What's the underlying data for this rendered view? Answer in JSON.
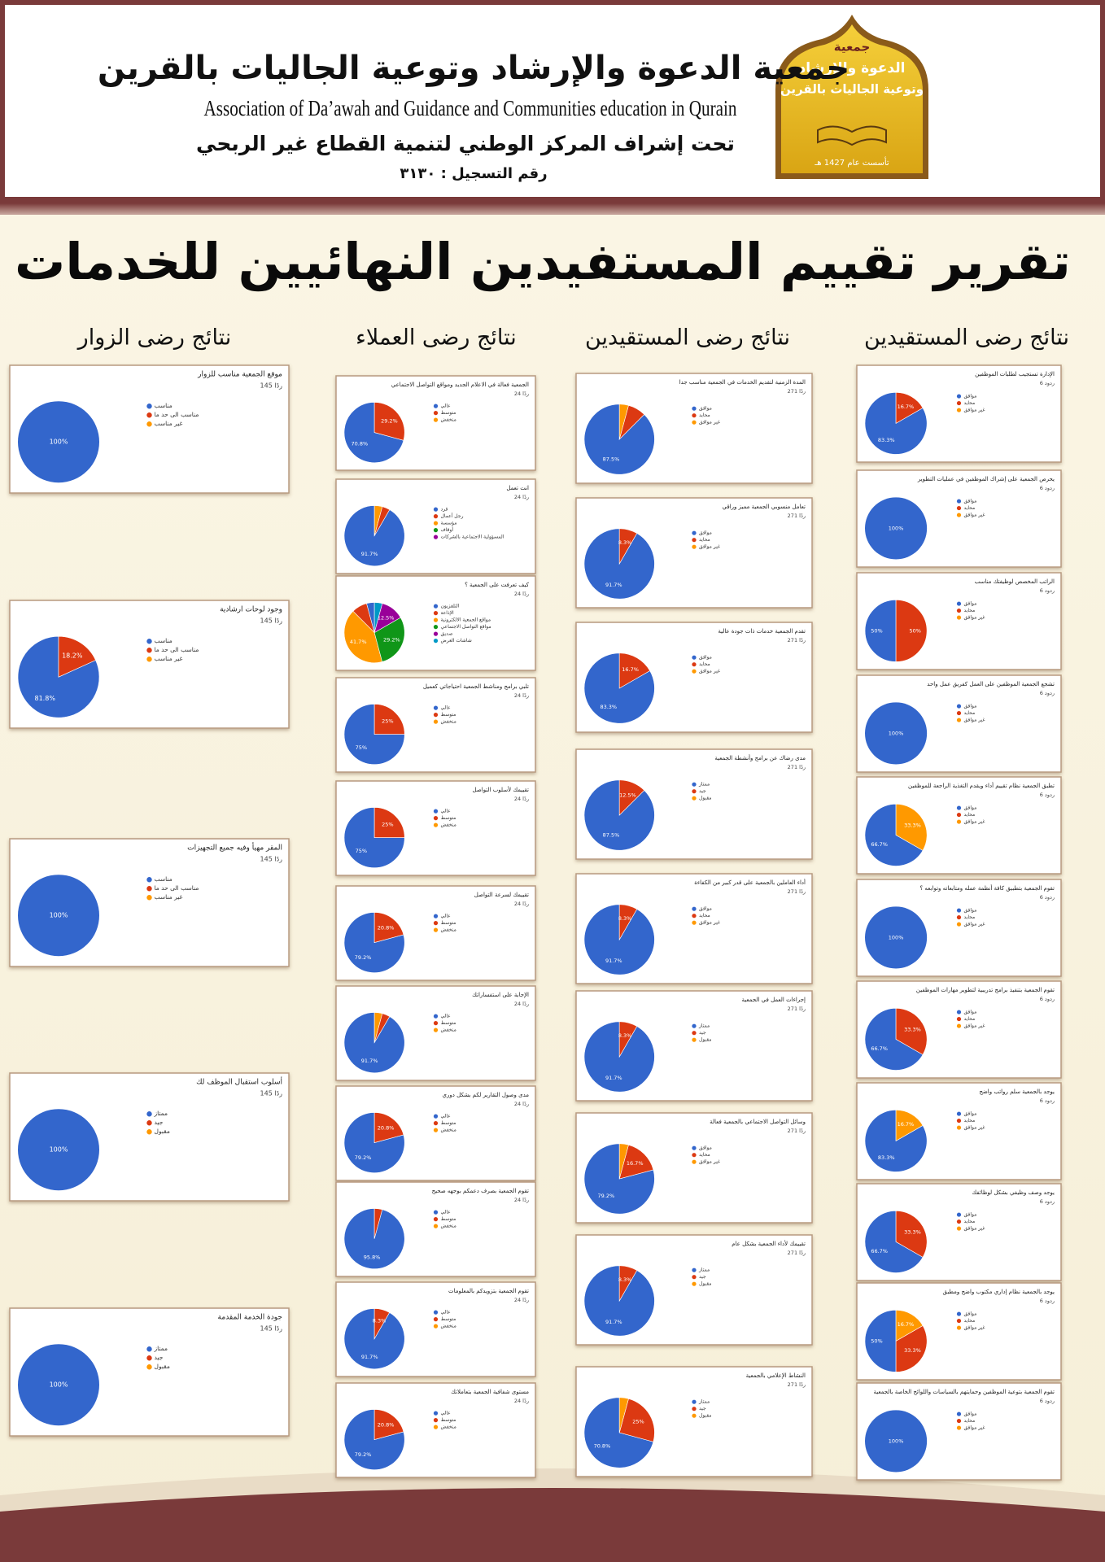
{
  "header": {
    "org_ar": "جمعية الدعوة والإرشاد وتوعية الجاليات بالقرين",
    "org_en": "Association of  Da’awah and Guidance and Communities education in Qurain",
    "supervision": "تحت إشراف المركز الوطني لتنمية القطاع غير الربحي",
    "registration": "رقم التسجيل : ٣١٣٠",
    "logo_lines": [
      "جمعية",
      "الدعوة والإرشاد",
      "وتوعية الجاليات بالقرين"
    ],
    "logo_date": "تأسست عام 1427 هـ"
  },
  "title": "تقرير تقييم المستفيدين النهائيين للخدمات",
  "slice_colors": [
    "#3366cc",
    "#dc3912",
    "#ff9900",
    "#109618",
    "#990099",
    "#0099c6"
  ],
  "sections": [
    {
      "heading": "نتائج رضى المستقيدين",
      "charts": [
        {
          "type": "pie",
          "title": "الإدارة تستجيب لطلبات الموظفين",
          "responses": "6 ردود",
          "categories": [
            "موافق",
            "محايد",
            "غير موافق"
          ],
          "values": [
            83.3,
            16.7,
            0
          ],
          "value_labels": [
            "83.3%",
            "16.7%",
            null
          ]
        },
        {
          "type": "pie",
          "title": "يحرص الجمعية على إشراك الموظفين في عمليات التطوير",
          "responses": "6 ردود",
          "categories": [
            "موافق",
            "محايد",
            "غير موافق"
          ],
          "values": [
            100,
            0,
            0
          ],
          "value_labels": [
            "100%",
            null,
            null
          ]
        },
        {
          "type": "pie",
          "title": "الراتب المخصص لوظيفتك مناسب",
          "responses": "6 ردود",
          "categories": [
            "موافق",
            "محايد",
            "غير موافق"
          ],
          "values": [
            50,
            50,
            0
          ],
          "value_labels": [
            "50%",
            "50%",
            null
          ]
        },
        {
          "type": "pie",
          "title": "تشجع الجمعية الموظفين على العمل كفريق عمل واحد",
          "responses": "6 ردود",
          "categories": [
            "موافق",
            "محايد",
            "غير موافق"
          ],
          "values": [
            100,
            0,
            0
          ],
          "value_labels": [
            "100%",
            null,
            null
          ]
        },
        {
          "type": "pie",
          "title": "تطبق الجمعية نظام تقييم أداء ويقدم التغذية الراجعة للموظفين",
          "responses": "6 ردود",
          "categories": [
            "موافق",
            "محايد",
            "غير موافق"
          ],
          "values": [
            66.7,
            0,
            33.3
          ],
          "value_labels": [
            "66.7%",
            null,
            "33.3%"
          ]
        },
        {
          "type": "pie",
          "title": "تقوم الجمعية بتطبيق كافة أنظمة عمله ومتابعاته وتوابعه ؟",
          "responses": "6 ردود",
          "categories": [
            "موافق",
            "محايد",
            "غير موافق"
          ],
          "values": [
            100,
            0,
            0
          ],
          "value_labels": [
            "100%",
            null,
            null
          ]
        },
        {
          "type": "pie",
          "title": "تقوم الجمعية بتنفيذ برامج تدريبية لتطوير مهارات الموظفين",
          "responses": "6 ردود",
          "categories": [
            "موافق",
            "محايد",
            "غير موافق"
          ],
          "values": [
            66.7,
            33.3,
            0
          ],
          "value_labels": [
            "66.7%",
            "33.3%",
            null
          ]
        },
        {
          "type": "pie",
          "title": "يوجد بالجمعية سلم رواتب واضح",
          "responses": "6 ردود",
          "categories": [
            "موافق",
            "محايد",
            "غير موافق"
          ],
          "values": [
            83.3,
            0,
            16.7
          ],
          "value_labels": [
            "83.3%",
            null,
            "16.7%"
          ]
        },
        {
          "type": "pie",
          "title": "يوجد وصف وظيفي بشكل لوظائفك",
          "responses": "6 ردود",
          "categories": [
            "موافق",
            "محايد",
            "غير موافق"
          ],
          "values": [
            66.7,
            33.3,
            0
          ],
          "value_labels": [
            "66.7%",
            "33.3%",
            null
          ]
        },
        {
          "type": "pie",
          "title": "يوجد بالجمعية نظام إداري مكتوب واضح ومطبق",
          "responses": "6 ردود",
          "categories": [
            "موافق",
            "محايد",
            "غير موافق"
          ],
          "values": [
            50,
            33.3,
            16.7
          ],
          "value_labels": [
            "50%",
            "33.3%",
            "16.7%"
          ]
        },
        {
          "type": "pie",
          "title": "تقوم الجمعية بتوعية الموظفين وحمايتهم بالسياسات واللوائح الخاصة بالجمعية",
          "responses": "6 ردود",
          "categories": [
            "موافق",
            "محايد",
            "غير موافق"
          ],
          "values": [
            100,
            0,
            0
          ],
          "value_labels": [
            "100%",
            null,
            null
          ]
        }
      ]
    },
    {
      "heading": "نتائج رضى المستقيدين",
      "charts": [
        {
          "type": "pie",
          "title": "المدة الزمنية لتقديم الخدمات في الجمعية مناسب جدا",
          "responses": "271 ردًا",
          "categories": [
            "موافق",
            "محايد",
            "غير موافق"
          ],
          "values": [
            87.5,
            8.3,
            4.2
          ],
          "value_labels": [
            "87.5%",
            null,
            null
          ]
        },
        {
          "type": "pie",
          "title": "تعامل منسوبي الجمعية مميز وراقي",
          "responses": "271 ردًا",
          "categories": [
            "موافق",
            "محايد",
            "غير موافق"
          ],
          "values": [
            91.7,
            8.3,
            0
          ],
          "value_labels": [
            "91.7%",
            "8.3%",
            null
          ]
        },
        {
          "type": "pie",
          "title": "تقدم الجمعية خدمات ذات جودة عالية",
          "responses": "271 ردًا",
          "categories": [
            "موافق",
            "محايد",
            "غير موافق"
          ],
          "values": [
            83.3,
            16.7,
            0
          ],
          "value_labels": [
            "83.3%",
            "16.7%",
            null
          ]
        },
        {
          "type": "pie",
          "title": "مدى رضاك عن برامج وأنشطة الجمعية",
          "responses": "271 ردًا",
          "categories": [
            "ممتاز",
            "جيد",
            "مقبول"
          ],
          "values": [
            87.5,
            12.5,
            0
          ],
          "value_labels": [
            "87.5%",
            "12.5%",
            null
          ]
        },
        {
          "type": "pie",
          "title": "أداء العاملين بالجمعية على قدر كبير من الكفاءة",
          "responses": "271 ردًا",
          "categories": [
            "موافق",
            "محايد",
            "غير موافق"
          ],
          "values": [
            91.7,
            8.3,
            0
          ],
          "value_labels": [
            "91.7%",
            "8.3%",
            null
          ]
        },
        {
          "type": "pie",
          "title": "إجراءات العمل في الجمعية",
          "responses": "271 ردًا",
          "categories": [
            "ممتاز",
            "جيد",
            "مقبول"
          ],
          "values": [
            91.7,
            8.3,
            0
          ],
          "value_labels": [
            "91.7%",
            "8.3%",
            null
          ]
        },
        {
          "type": "pie",
          "title": "وسائل التواصل الاجتماعي بالجمعية فعالة",
          "responses": "271 ردًا",
          "categories": [
            "موافق",
            "محايد",
            "غير موافق"
          ],
          "values": [
            79.2,
            16.7,
            4.2
          ],
          "value_labels": [
            "79.2%",
            "16.7%",
            null
          ]
        },
        {
          "type": "pie",
          "title": "تقييمك لأداء الجمعية بشكل عام",
          "responses": "271 ردًا",
          "categories": [
            "ممتاز",
            "جيد",
            "مقبول"
          ],
          "values": [
            91.7,
            8.3,
            0
          ],
          "value_labels": [
            "91.7%",
            "8.3%",
            null
          ]
        },
        {
          "type": "pie",
          "title": "النشاط الإعلامي بالجمعية",
          "responses": "271 ردًا",
          "categories": [
            "ممتاز",
            "جيد",
            "مقبول"
          ],
          "values": [
            70.8,
            25,
            4.2
          ],
          "value_labels": [
            "70.8%",
            "25%",
            null
          ]
        }
      ]
    },
    {
      "heading": "نتائج رضى العملاء",
      "charts": [
        {
          "type": "pie",
          "title": "الجمعية فعالة في الاعلام الجديد ومواقع التواصل الاجتماعي",
          "responses": "24 ردًا",
          "categories": [
            "عالي",
            "متوسط",
            "منخفض"
          ],
          "values": [
            70.8,
            29.2,
            0
          ],
          "value_labels": [
            "70.8%",
            "29.2%",
            null
          ]
        },
        {
          "type": "pie",
          "title": "انت تعمل",
          "responses": "24 ردًا",
          "categories": [
            "فرد",
            "رجل أعمال",
            "مؤسسة",
            "أوقاف",
            "المسؤولية الاجتماعية بالشركات"
          ],
          "values": [
            91.7,
            4.2,
            4.2,
            0,
            0
          ],
          "value_labels": [
            "91.7%",
            null,
            null,
            null,
            null
          ]
        },
        {
          "type": "pie",
          "title": "كيف تعرفت على الجمعية ؟",
          "responses": "24 ردًا",
          "categories": [
            "التلفزيون",
            "الإذاعة",
            "مواقع الجمعية الالكترونية",
            "مواقع التواصل الاجتماعي",
            "صديق",
            "شاشات العرض"
          ],
          "values": [
            4.2,
            8.3,
            41.7,
            29.2,
            12.5,
            4.2
          ],
          "value_labels": [
            null,
            null,
            "41.7%",
            "29.2%",
            "12.5%",
            null
          ]
        },
        {
          "type": "pie",
          "title": "تلبي برامج ومناشط الجمعية احتياجاتي كعميل",
          "responses": "24 ردًا",
          "categories": [
            "عالي",
            "متوسط",
            "منخفض"
          ],
          "values": [
            75,
            25,
            0
          ],
          "value_labels": [
            "75%",
            "25%",
            null
          ]
        },
        {
          "type": "pie",
          "title": "تقييمك لأسلوب التواصل",
          "responses": "24 ردًا",
          "categories": [
            "عالي",
            "متوسط",
            "منخفض"
          ],
          "values": [
            75,
            25,
            0
          ],
          "value_labels": [
            "75%",
            "25%",
            null
          ]
        },
        {
          "type": "pie",
          "title": "تقييمك لسرعة التواصل",
          "responses": "24 ردًا",
          "categories": [
            "عالي",
            "متوسط",
            "منخفض"
          ],
          "values": [
            79.2,
            20.8,
            0
          ],
          "value_labels": [
            "79.2%",
            "20.8%",
            null
          ]
        },
        {
          "type": "pie",
          "title": "الإجابة على استفساراتك",
          "responses": "24 ردًا",
          "categories": [
            "عالي",
            "متوسط",
            "منخفض"
          ],
          "values": [
            91.7,
            4.2,
            4.2
          ],
          "value_labels": [
            "91.7%",
            null,
            null
          ]
        },
        {
          "type": "pie",
          "title": "مدى وصول التقارير لكم بشكل دوري",
          "responses": "24 ردًا",
          "categories": [
            "عالي",
            "متوسط",
            "منخفض"
          ],
          "values": [
            79.2,
            20.8,
            0
          ],
          "value_labels": [
            "79.2%",
            "20.8%",
            null
          ]
        },
        {
          "type": "pie",
          "title": "تقوم الجمعية بصرف دعمكم بوجهه صحيح",
          "responses": "24 ردًا",
          "categories": [
            "عالي",
            "متوسط",
            "منخفض"
          ],
          "values": [
            95.8,
            4.2,
            0
          ],
          "value_labels": [
            "95.8%",
            null,
            null
          ]
        },
        {
          "type": "pie",
          "title": "تقوم الجمعية بتزويدكم بالمعلومات",
          "responses": "24 ردًا",
          "categories": [
            "عالي",
            "متوسط",
            "منخفض"
          ],
          "values": [
            91.7,
            8.3,
            0
          ],
          "value_labels": [
            "91.7%",
            "8.3%",
            null
          ]
        },
        {
          "type": "pie",
          "title": "مستوى شفافية الجمعية بتعاملاتك",
          "responses": "24 ردًا",
          "categories": [
            "عالي",
            "متوسط",
            "منخفض"
          ],
          "values": [
            79.2,
            20.8,
            0
          ],
          "value_labels": [
            "79.2%",
            "20.8%",
            null
          ]
        }
      ]
    },
    {
      "heading": "نتائج رضى الزوار",
      "charts": [
        {
          "type": "pie",
          "title": "موقع الجمعية مناسب للزوار",
          "responses": "145 ردًا",
          "categories": [
            "مناسب",
            "مناسب الى حد ما",
            "غير مناسب"
          ],
          "values": [
            100,
            0,
            0
          ],
          "value_labels": [
            "100%",
            null,
            null
          ]
        },
        {
          "type": "pie",
          "title": "وجود لوحات ارشادية",
          "responses": "145 ردًا",
          "categories": [
            "مناسب",
            "مناسب الى حد ما",
            "غير مناسب"
          ],
          "values": [
            81.8,
            18.2,
            0
          ],
          "value_labels": [
            "81.8%",
            "18.2%",
            null
          ]
        },
        {
          "type": "pie",
          "title": "المقر مهيأ وفيه جميع التجهيزات",
          "responses": "145 ردًا",
          "categories": [
            "مناسب",
            "مناسب الى حد ما",
            "غير مناسب"
          ],
          "values": [
            100,
            0,
            0
          ],
          "value_labels": [
            "100%",
            null,
            null
          ]
        },
        {
          "type": "pie",
          "title": "أسلوب استقبال الموظف لك",
          "responses": "145 ردًا",
          "categories": [
            "ممتاز",
            "جيد",
            "مقبول"
          ],
          "values": [
            100,
            0,
            0
          ],
          "value_labels": [
            "100%",
            null,
            null
          ]
        },
        {
          "type": "pie",
          "title": "جودة الخدمة المقدمة",
          "responses": "145 ردًا",
          "categories": [
            "ممتاز",
            "جيد",
            "مقبول"
          ],
          "values": [
            100,
            0,
            0
          ],
          "value_labels": [
            "100%",
            null,
            null
          ]
        }
      ]
    }
  ]
}
